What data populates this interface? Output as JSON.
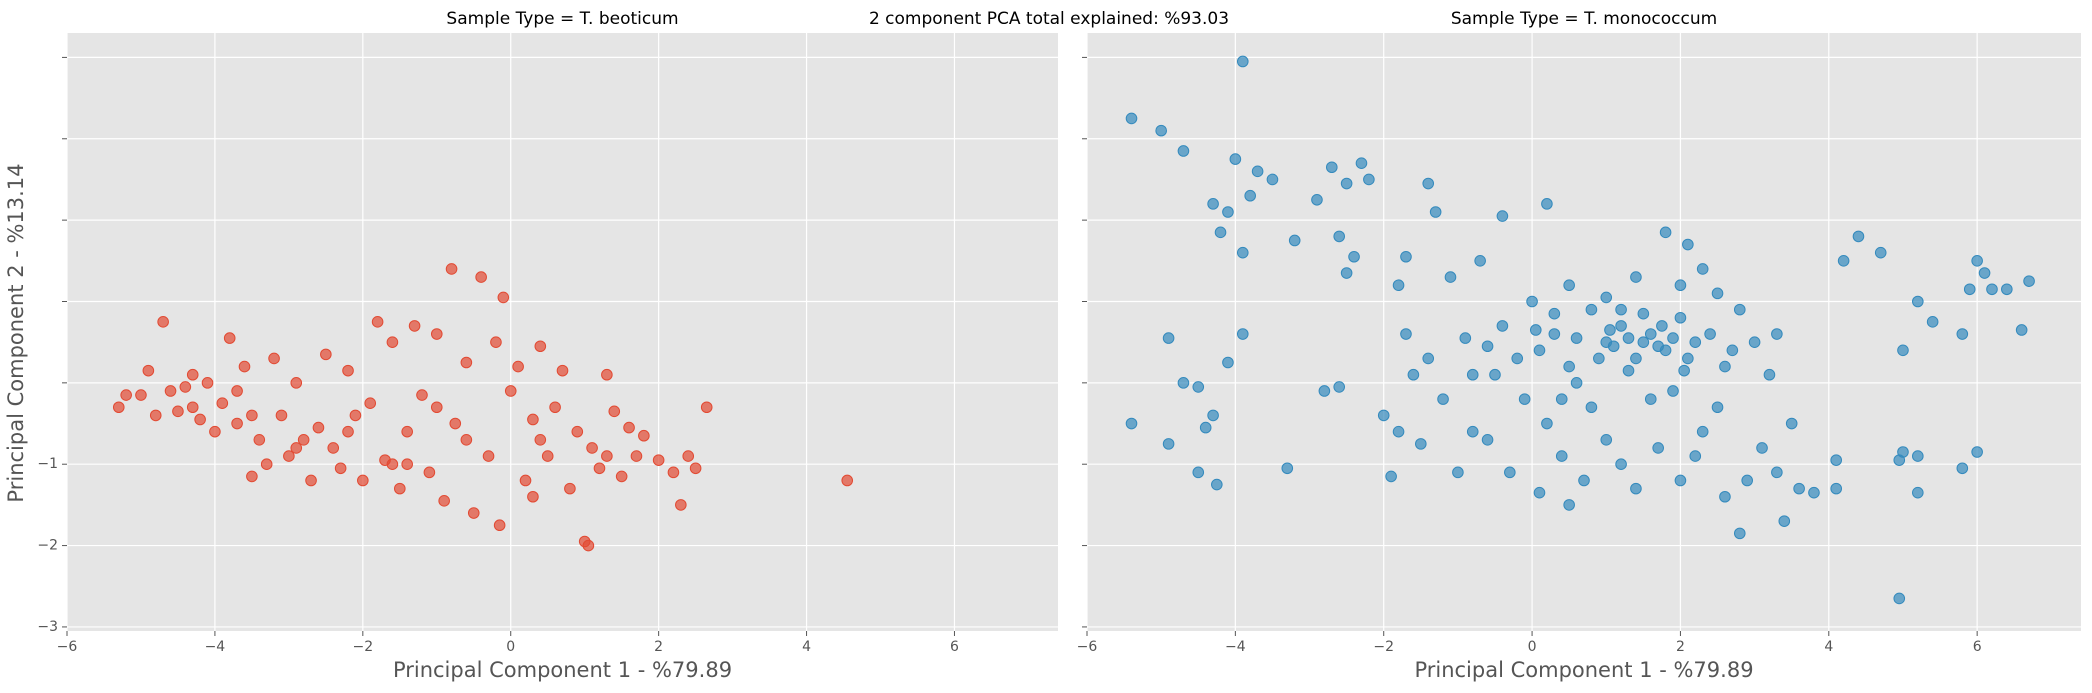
{
  "figure_title": "2 component PCA total explained: %93.03",
  "chart_data": [
    {
      "type": "scatter",
      "title": "Sample Type = T. beoticum",
      "xlabel": "Principal Component 1 - %79.89",
      "ylabel": "Principal Component 2 - %13.14",
      "color": "#E24A33",
      "grid": true,
      "xlim": [
        -6,
        7.4
      ],
      "ylim": [
        -3.05,
        4.3
      ],
      "xticks": [
        {
          "value": -6,
          "label": "−6"
        },
        {
          "value": -4,
          "label": "−4"
        },
        {
          "value": -2,
          "label": "−2"
        },
        0,
        2,
        4,
        6
      ],
      "yticks": [
        {
          "value": -3,
          "label": "−3"
        },
        {
          "value": -2,
          "label": "−2"
        },
        {
          "value": -1,
          "label": "−1"
        },
        0,
        1,
        2,
        3,
        4
      ],
      "x": [
        -5.3,
        -5.2,
        -5,
        -4.9,
        -4.8,
        -4.7,
        -4.6,
        -4.5,
        -4.4,
        -4.3,
        -4.2,
        -4.1,
        -4,
        -3.9,
        -3.8,
        -3.7,
        -3.6,
        -3.5,
        -3.4,
        -3.3,
        -3.2,
        -3.1,
        -3,
        -2.9,
        -2.8,
        -2.7,
        -2.6,
        -2.5,
        -2.4,
        -2.3,
        -2.2,
        -2.1,
        -2,
        -1.9,
        -1.8,
        -1.7,
        -1.6,
        -1.5,
        -1.4,
        -1.3,
        -1.2,
        -1.1,
        -1,
        -0.9,
        -0.8,
        -0.75,
        -0.6,
        -0.5,
        -0.4,
        -0.3,
        -0.2,
        -0.15,
        -0.1,
        0,
        0.1,
        0.2,
        0.3,
        0.4,
        0.5,
        0.6,
        0.7,
        0.8,
        0.9,
        1,
        1.05,
        1.1,
        1.2,
        1.3,
        1.4,
        1.5,
        1.6,
        1.7,
        1.8,
        2,
        2.2,
        2.3,
        2.4,
        2.5,
        2.65,
        4.55,
        -3.5,
        -2.9,
        -1.6,
        -1,
        0.4,
        -4.3,
        -3.7,
        -2.2,
        -1.4,
        -0.6,
        0.3,
        1.3
      ],
      "y": [
        -0.3,
        -0.15,
        -0.15,
        0.15,
        -0.4,
        0.75,
        -0.1,
        -0.35,
        -0.05,
        0.1,
        -0.45,
        0,
        -0.6,
        -0.25,
        0.55,
        -0.5,
        0.2,
        -1.15,
        -0.7,
        -1,
        0.3,
        -0.4,
        -0.9,
        0,
        -0.7,
        -1.2,
        -0.55,
        0.35,
        -0.8,
        -1.05,
        0.15,
        -0.4,
        -1.2,
        -0.25,
        0.75,
        -0.95,
        0.5,
        -1.3,
        -0.6,
        0.7,
        -0.15,
        -1.1,
        0.6,
        -1.45,
        1.4,
        -0.5,
        0.25,
        -1.6,
        1.3,
        -0.9,
        0.5,
        -1.75,
        1.05,
        -0.1,
        0.2,
        -1.2,
        -0.45,
        0.45,
        -0.9,
        -0.3,
        0.15,
        -1.3,
        -0.6,
        -1.95,
        -2,
        -0.8,
        -1.05,
        0.1,
        -0.35,
        -1.15,
        -0.55,
        -0.9,
        -0.65,
        -0.95,
        -1.1,
        -1.5,
        -0.9,
        -1.05,
        -0.3,
        -1.2,
        -0.4,
        -0.8,
        -1,
        -0.3,
        -0.7,
        -0.3,
        -0.1,
        -0.6,
        -1,
        -0.7,
        -1.4,
        -0.9
      ]
    },
    {
      "type": "scatter",
      "title": "Sample Type = T. monococcum",
      "xlabel": "Principal Component 1 - %79.89",
      "color": "#348ABD",
      "grid": true,
      "xlim": [
        -6,
        7.4
      ],
      "ylim": [
        -3.05,
        4.3
      ],
      "xticks": [
        {
          "value": -6,
          "label": "−6"
        },
        {
          "value": -4,
          "label": "−4"
        },
        {
          "value": -2,
          "label": "−2"
        },
        0,
        2,
        4,
        6
      ],
      "yticks": [
        -3,
        -2,
        -1,
        0,
        1,
        2,
        3,
        4
      ],
      "x": [
        -5.4,
        -5,
        -4.7,
        -3.9,
        -4,
        -3.7,
        -3.5,
        -4.3,
        -4.1,
        -3.8,
        -3.9,
        -4.2,
        -3.2,
        -2.9,
        -2.7,
        -2.5,
        -2.3,
        -2.2,
        -2.4,
        -2.5,
        -2.6,
        -1.4,
        -1.7,
        -1.3,
        -1.8,
        -0.4,
        0.2,
        -1.1,
        -0.7,
        -5.4,
        -4.9,
        -4.7,
        -4.5,
        -4.4,
        -4.3,
        -4.25,
        -4.5,
        -4.1,
        -3.9,
        -4.9,
        -3.3,
        -2.6,
        -2.8,
        -2,
        -1.9,
        -1.8,
        -1.7,
        -1.6,
        -1.5,
        -1.4,
        -1.2,
        -1,
        -0.8,
        -0.6,
        4.2,
        4.4,
        4.7,
        5,
        5.2,
        5.4,
        5.8,
        5.9,
        6,
        6.1,
        6.2,
        6.4,
        6.7,
        6.6,
        5.8,
        6,
        5,
        4.95,
        5.2,
        5.2,
        4.95,
        4.1,
        4.1,
        3.8,
        3.4,
        3.6,
        3.3,
        0,
        0.3,
        0.5,
        0.8,
        1,
        1.2,
        1.4,
        1.6,
        1.8,
        2,
        2.2,
        0.1,
        0.6,
        0.9,
        1.1,
        1.3,
        1.5,
        1.7,
        1.9,
        2.1,
        2.4,
        2.6,
        2.8,
        3,
        3.3,
        -0.4,
        -0.2,
        -0.5,
        -0.1,
        0.2,
        0.4,
        0.7,
        1,
        1.2,
        1.4,
        1.7,
        2,
        2.3,
        2.6,
        2.8,
        2.9,
        3.1,
        0.5,
        0.1,
        -0.3,
        1.6,
        1.9,
        2.5,
        0.6,
        1.3,
        2,
        2.3,
        2.5,
        1.8,
        2.1,
        1.4,
        1,
        0.5,
        1.2,
        0.8,
        0.3,
        1.5,
        2.7,
        3.2,
        -0.6,
        -0.9,
        0.05,
        1.05,
        1.75,
        2.05,
        0.4,
        2.2,
        3.5,
        -0.8
      ],
      "y": [
        3.25,
        3.1,
        2.85,
        3.95,
        2.75,
        2.6,
        2.5,
        2.2,
        2.1,
        2.3,
        1.6,
        1.85,
        1.75,
        2.25,
        2.65,
        2.45,
        2.7,
        2.5,
        1.55,
        1.35,
        1.8,
        2.45,
        1.55,
        2.1,
        1.2,
        2.05,
        2.2,
        1.3,
        1.5,
        -0.5,
        0.55,
        0,
        -0.05,
        -0.55,
        -0.4,
        -1.25,
        -1.1,
        0.25,
        0.6,
        -0.75,
        -1.05,
        -0.05,
        -0.1,
        -0.4,
        -1.15,
        -0.6,
        0.6,
        0.1,
        -0.75,
        0.3,
        -0.2,
        -1.1,
        0.1,
        -0.7,
        1.5,
        1.8,
        1.6,
        0.4,
        1,
        0.75,
        0.6,
        1.15,
        1.5,
        1.35,
        1.15,
        1.15,
        1.25,
        0.65,
        -1.05,
        -0.85,
        -0.85,
        -0.95,
        -1.35,
        -0.9,
        -2.65,
        -0.95,
        -1.3,
        -1.35,
        -1.7,
        -1.3,
        -1.1,
        1,
        0.6,
        0.2,
        0.9,
        0.5,
        0.7,
        0.3,
        0.6,
        0.4,
        0.8,
        0.5,
        0.4,
        0.55,
        0.3,
        0.45,
        0.55,
        0.5,
        0.45,
        0.55,
        0.3,
        0.6,
        0.2,
        0.9,
        0.5,
        0.6,
        0.7,
        0.3,
        0.1,
        -0.2,
        -0.5,
        -0.9,
        -1.2,
        -0.7,
        -1,
        -1.3,
        -0.8,
        -1.2,
        -0.6,
        -1.4,
        -1.85,
        -1.2,
        -0.8,
        -1.5,
        -1.35,
        -1.1,
        -0.2,
        -0.1,
        -0.3,
        0,
        0.15,
        1.2,
        1.4,
        1.1,
        1.85,
        1.7,
        1.3,
        1.05,
        1.2,
        0.9,
        -0.3,
        0.85,
        0.85,
        0.4,
        0.1,
        0.45,
        0.55,
        0.65,
        0.65,
        0.7,
        0.15,
        -0.2,
        -0.9,
        -0.5,
        -0.6
      ]
    }
  ]
}
